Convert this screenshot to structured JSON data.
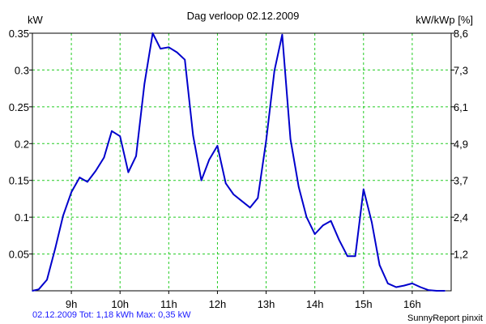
{
  "chart_data": {
    "type": "line",
    "title": "Dag  verloop 02.12.2009",
    "ylabel_left": "kW",
    "ylabel_right": "kW/kWp [%]",
    "ylim": [
      0,
      0.35
    ],
    "xlim": [
      8.2,
      16.8
    ],
    "x_ticks": [
      9,
      10,
      11,
      12,
      13,
      14,
      15,
      16
    ],
    "x_tick_labels": [
      "9h",
      "10h",
      "11h",
      "12h",
      "13h",
      "14h",
      "15h",
      "16h"
    ],
    "y_ticks": [
      0.05,
      0.1,
      0.15,
      0.2,
      0.25,
      0.3,
      0.35
    ],
    "y_tick_labels": [
      "0.05",
      "0.1",
      "0.15",
      "0.2",
      "0.25",
      "0.3",
      "0.35"
    ],
    "y2_tick_labels": [
      "1,2",
      "2,4",
      "3,7",
      "4,9",
      "6,1",
      "7,3",
      "8,6"
    ],
    "grid": true,
    "series": [
      {
        "color": "#0000cc",
        "x": [
          8.2,
          8.33,
          8.5,
          8.67,
          8.83,
          9.0,
          9.17,
          9.33,
          9.5,
          9.67,
          9.83,
          10.0,
          10.17,
          10.33,
          10.5,
          10.67,
          10.83,
          11.0,
          11.17,
          11.33,
          11.5,
          11.67,
          11.83,
          12.0,
          12.17,
          12.33,
          12.5,
          12.67,
          12.83,
          13.0,
          13.17,
          13.33,
          13.5,
          13.67,
          13.83,
          14.0,
          14.17,
          14.33,
          14.5,
          14.67,
          14.83,
          15.0,
          15.17,
          15.33,
          15.5,
          15.67,
          15.83,
          16.0,
          16.17,
          16.33,
          16.5,
          16.67
        ],
        "y": [
          0.0,
          0.002,
          0.015,
          0.058,
          0.102,
          0.134,
          0.154,
          0.148,
          0.163,
          0.181,
          0.217,
          0.21,
          0.161,
          0.183,
          0.281,
          0.35,
          0.329,
          0.331,
          0.324,
          0.314,
          0.211,
          0.15,
          0.178,
          0.197,
          0.146,
          0.131,
          0.122,
          0.113,
          0.126,
          0.204,
          0.299,
          0.348,
          0.206,
          0.141,
          0.1,
          0.077,
          0.089,
          0.095,
          0.069,
          0.047,
          0.047,
          0.138,
          0.093,
          0.035,
          0.01,
          0.005,
          0.007,
          0.01,
          0.005,
          0.001,
          0.0,
          0.0
        ]
      }
    ],
    "footer_left": "02.12.2009 Tot: 1,18 kWh Max: 0,35 kW",
    "footer_right": "SunnyReport pinxit"
  }
}
